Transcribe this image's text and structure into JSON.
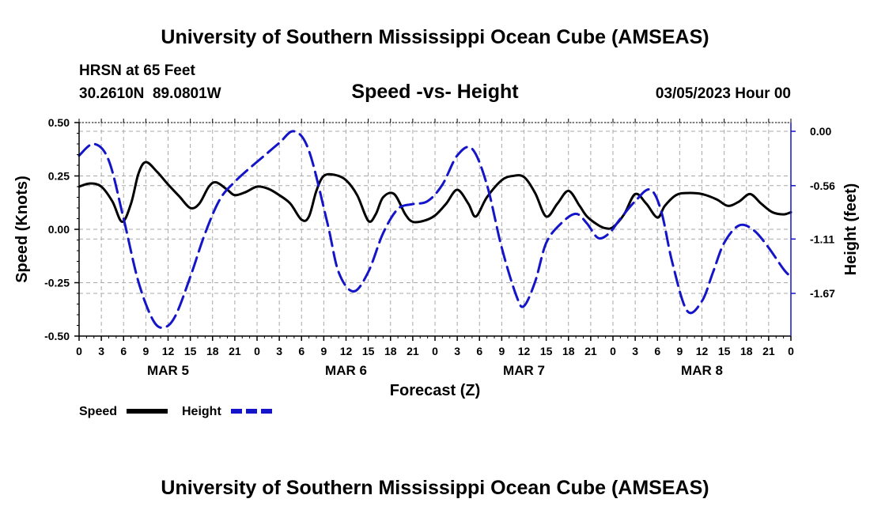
{
  "header": {
    "title": "University of Southern Mississippi Ocean Cube (AMSEAS)",
    "station": "HRSN at 65 Feet",
    "coords": "30.2610N  89.0801W",
    "subtitle": "Speed -vs- Height",
    "datetime": "03/05/2023 Hour 00"
  },
  "footer": {
    "title": "University of Southern Mississippi Ocean Cube (AMSEAS)"
  },
  "legend": {
    "speed_label": "Speed",
    "height_label": "Height"
  },
  "colors": {
    "speed": "#000000",
    "height": "#1414c8",
    "grid": "#a8a8a8"
  },
  "chart_data": {
    "type": "line",
    "xlabel": "Forecast (Z)",
    "ylabel_left": "Speed (Knots)",
    "ylabel_right": "Height (feet)",
    "xlim": [
      0,
      96
    ],
    "ylim_left": [
      -0.5,
      0.5
    ],
    "ylim_right": [
      -2.11,
      0.09
    ],
    "grid": true,
    "legend_position": "bottom-left",
    "x_ticks": [
      0,
      3,
      6,
      9,
      12,
      15,
      18,
      21,
      24,
      27,
      30,
      33,
      36,
      39,
      42,
      45,
      48,
      51,
      54,
      57,
      60,
      63,
      66,
      69,
      72,
      75,
      78,
      81,
      84,
      87,
      90,
      93,
      96
    ],
    "x_tick_labels": [
      "0",
      "3",
      "6",
      "9",
      "12",
      "15",
      "18",
      "21",
      "0",
      "3",
      "6",
      "9",
      "12",
      "15",
      "18",
      "21",
      "0",
      "3",
      "6",
      "9",
      "12",
      "15",
      "18",
      "21",
      "0",
      "3",
      "6",
      "9",
      "12",
      "15",
      "18",
      "21",
      "0"
    ],
    "day_labels": [
      {
        "label": "MAR 5",
        "x": 12
      },
      {
        "label": "MAR 6",
        "x": 36
      },
      {
        "label": "MAR 7",
        "x": 60
      },
      {
        "label": "MAR 8",
        "x": 84
      }
    ],
    "left_ticks": [
      -0.5,
      -0.25,
      0.0,
      0.25,
      0.5
    ],
    "left_tick_labels": [
      "-0.50",
      "-0.25",
      "0.00",
      "0.25",
      "0.50"
    ],
    "right_ticks": [
      0.0,
      -0.56,
      -1.11,
      -1.67
    ],
    "right_tick_labels": [
      "0.00",
      "-0.56",
      "-1.11",
      "-1.67"
    ],
    "series": [
      {
        "name": "Speed",
        "axis": "left",
        "x": [
          0,
          1.5,
          3,
          4.5,
          5.8,
          7,
          8,
          9,
          10.5,
          12,
          13.5,
          15,
          16.2,
          17.5,
          18.5,
          20,
          21,
          22.5,
          24,
          25.5,
          27,
          28.5,
          30,
          31,
          32,
          33,
          34.5,
          36,
          37.5,
          39,
          40,
          41,
          42.5,
          44,
          45,
          46.5,
          48,
          49.5,
          51,
          52.5,
          53.5,
          55,
          57,
          58.5,
          60,
          61.5,
          63,
          64.5,
          66,
          67.5,
          68.5,
          70,
          71,
          72,
          73.5,
          75,
          76.5,
          78,
          79,
          80.5,
          82,
          84,
          86,
          87.5,
          89,
          90.5,
          92,
          93.5,
          95,
          96
        ],
        "y": [
          0.2,
          0.215,
          0.2,
          0.13,
          0.035,
          0.12,
          0.26,
          0.315,
          0.27,
          0.21,
          0.155,
          0.1,
          0.12,
          0.2,
          0.22,
          0.185,
          0.16,
          0.175,
          0.2,
          0.19,
          0.16,
          0.12,
          0.045,
          0.06,
          0.18,
          0.25,
          0.255,
          0.23,
          0.16,
          0.04,
          0.07,
          0.15,
          0.165,
          0.07,
          0.035,
          0.04,
          0.065,
          0.12,
          0.185,
          0.12,
          0.06,
          0.15,
          0.23,
          0.25,
          0.245,
          0.17,
          0.06,
          0.12,
          0.18,
          0.11,
          0.06,
          0.02,
          0.005,
          0.01,
          0.07,
          0.165,
          0.12,
          0.055,
          0.11,
          0.16,
          0.17,
          0.165,
          0.14,
          0.11,
          0.13,
          0.165,
          0.12,
          0.08,
          0.07,
          0.08
        ]
      },
      {
        "name": "Height",
        "axis": "right",
        "x": [
          0,
          2,
          4,
          6,
          8,
          10,
          11.5,
          13,
          15,
          17,
          19,
          21,
          23,
          25,
          27,
          29,
          31,
          33.5,
          35,
          37,
          39,
          41,
          43,
          45,
          47,
          49,
          51,
          53,
          55,
          57,
          59,
          60,
          61.5,
          63,
          65,
          67,
          68.5,
          70,
          71.5,
          73,
          75,
          77,
          78.5,
          80,
          82,
          84,
          85.5,
          87,
          89,
          91,
          93,
          95,
          96
        ],
        "y": [
          -0.25,
          -0.13,
          -0.3,
          -0.9,
          -1.55,
          -1.95,
          -2.02,
          -1.9,
          -1.5,
          -1.05,
          -0.7,
          -0.52,
          -0.38,
          -0.25,
          -0.12,
          0.0,
          -0.2,
          -0.95,
          -1.45,
          -1.65,
          -1.45,
          -1.05,
          -0.8,
          -0.75,
          -0.72,
          -0.55,
          -0.25,
          -0.18,
          -0.55,
          -1.2,
          -1.7,
          -1.8,
          -1.55,
          -1.15,
          -0.95,
          -0.85,
          -0.95,
          -1.1,
          -1.05,
          -0.9,
          -0.72,
          -0.6,
          -0.82,
          -1.35,
          -1.85,
          -1.75,
          -1.45,
          -1.15,
          -0.97,
          -1.02,
          -1.2,
          -1.42,
          -1.5
        ]
      }
    ]
  }
}
